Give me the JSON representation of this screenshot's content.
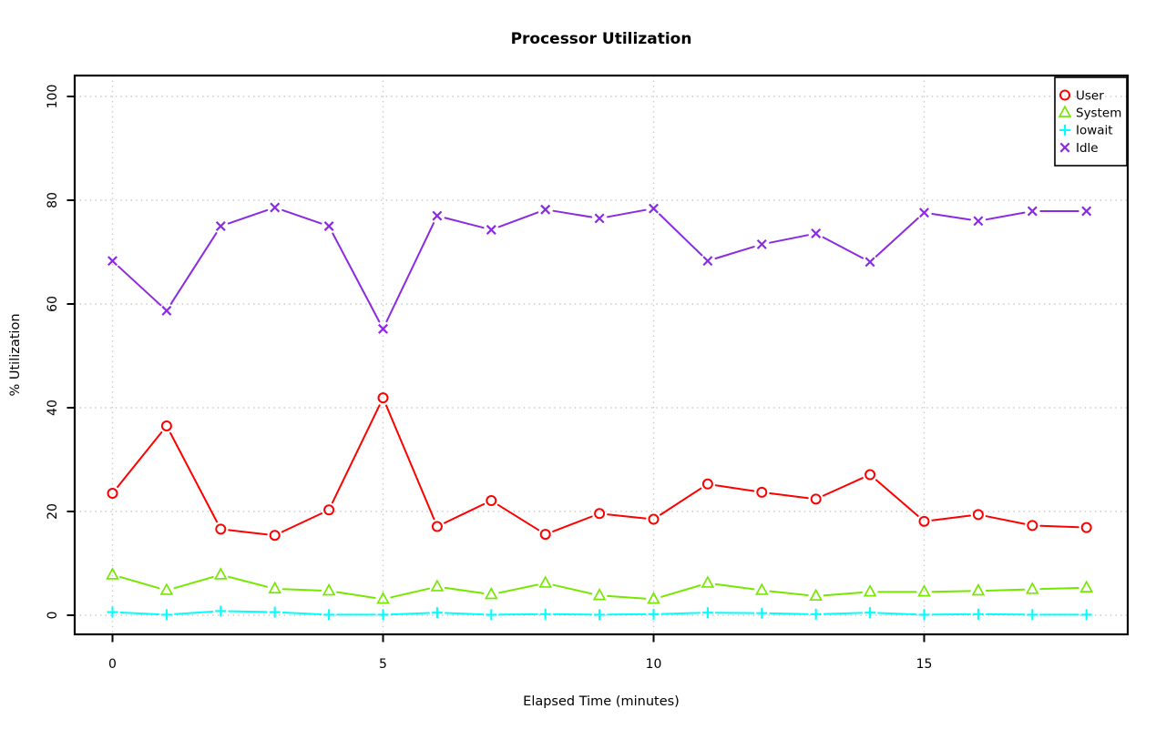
{
  "chart": {
    "title": "Processor Utilization",
    "xlabel": "Elapsed Time (minutes)",
    "ylabel": "% Utilization"
  },
  "chart_data": {
    "type": "line",
    "title": "Processor Utilization",
    "xlabel": "Elapsed Time (minutes)",
    "ylabel": "% Utilization",
    "x": [
      0,
      1,
      2,
      3,
      4,
      5,
      6,
      7,
      8,
      9,
      10,
      11,
      12,
      13,
      14,
      15,
      16,
      17,
      18
    ],
    "series": [
      {
        "name": "User",
        "color": "#ff0000",
        "marker": "circle",
        "values": [
          23.5,
          36.5,
          16.6,
          15.4,
          20.3,
          41.9,
          17.1,
          22.1,
          15.6,
          19.6,
          18.5,
          25.3,
          23.7,
          22.4,
          27.1,
          18.1,
          19.4,
          17.3,
          16.9
        ]
      },
      {
        "name": "System",
        "color": "#76e800",
        "marker": "triangle",
        "values": [
          7.8,
          4.8,
          7.8,
          5.1,
          4.7,
          3.1,
          5.5,
          4.0,
          6.2,
          3.8,
          3.1,
          6.2,
          4.8,
          3.7,
          4.5,
          4.5,
          4.7,
          5.0,
          5.3
        ]
      },
      {
        "name": "Iowait",
        "color": "#00ffff",
        "marker": "plus",
        "values": [
          0.6,
          0.1,
          0.8,
          0.6,
          0.1,
          0.1,
          0.5,
          0.1,
          0.2,
          0.1,
          0.2,
          0.5,
          0.4,
          0.2,
          0.5,
          0.1,
          0.2,
          0.1,
          0.1
        ]
      },
      {
        "name": "Idle",
        "color": "#8a2be2",
        "marker": "x",
        "values": [
          68.3,
          58.7,
          75.0,
          78.6,
          75.0,
          55.2,
          77.0,
          74.3,
          78.2,
          76.5,
          78.4,
          68.3,
          71.5,
          73.6,
          68.1,
          77.6,
          76.0,
          77.9,
          77.9
        ]
      }
    ],
    "xticks": [
      0,
      5,
      10,
      15
    ],
    "yticks": [
      0,
      20,
      40,
      60,
      80,
      100
    ],
    "xlim": [
      -0.72,
      18.72
    ],
    "ylim": [
      -4,
      104
    ],
    "grid": true,
    "grid_style": "dotted",
    "legend_position": "top-right",
    "colors": {
      "grid": "#c9c9c9",
      "axis": "#000000",
      "background": "#ffffff"
    }
  }
}
